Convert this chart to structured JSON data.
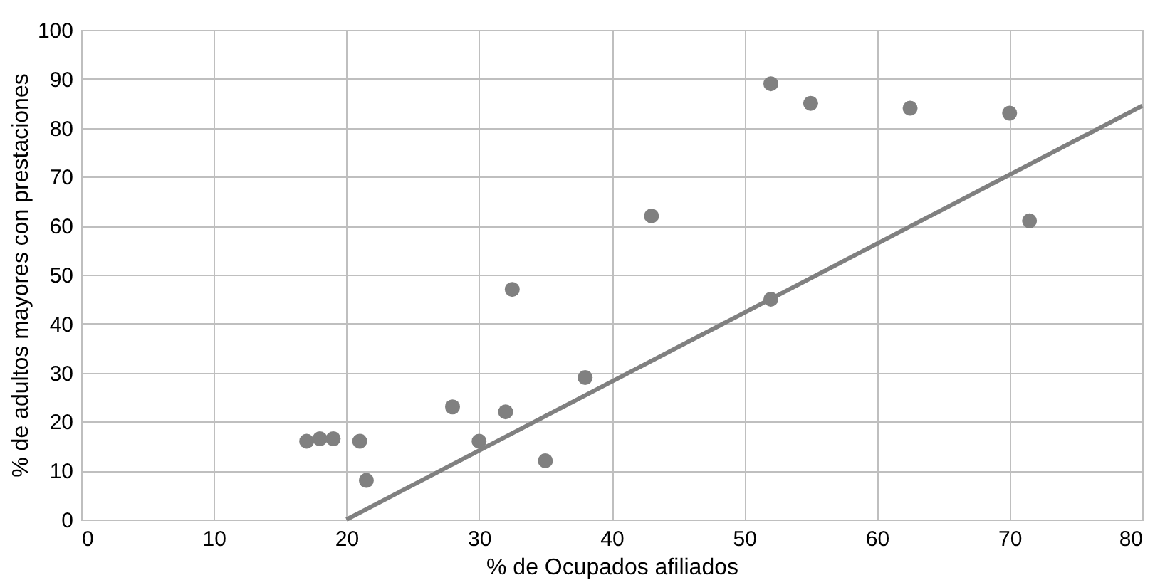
{
  "chart_data": {
    "type": "scatter",
    "xlabel": "% de Ocupados afiliados",
    "ylabel": "% de adultos mayores con prestaciones",
    "xlim": [
      0,
      80
    ],
    "xticks": [
      0,
      10,
      20,
      30,
      40,
      50,
      60,
      70,
      80
    ],
    "ylim": [
      0,
      100
    ],
    "yticks": [
      0,
      10,
      20,
      30,
      40,
      50,
      60,
      70,
      80,
      90,
      100
    ],
    "grid": true,
    "series": [
      {
        "marker": "circle",
        "color": "#808080",
        "x": [
          17,
          18,
          19,
          21,
          21.5,
          28,
          30,
          32,
          32.5,
          35,
          38,
          43,
          52,
          52,
          55,
          62.5,
          70,
          71.5
        ],
        "values": [
          16,
          16.5,
          16.5,
          16,
          8,
          23,
          16,
          22,
          47,
          12,
          29,
          62,
          89,
          45,
          85,
          84,
          83,
          61
        ]
      },
      {
        "type": "line",
        "color": "#808080",
        "line_style": "solid",
        "x": [
          20,
          80
        ],
        "values": [
          0,
          84.5
        ]
      }
    ]
  }
}
